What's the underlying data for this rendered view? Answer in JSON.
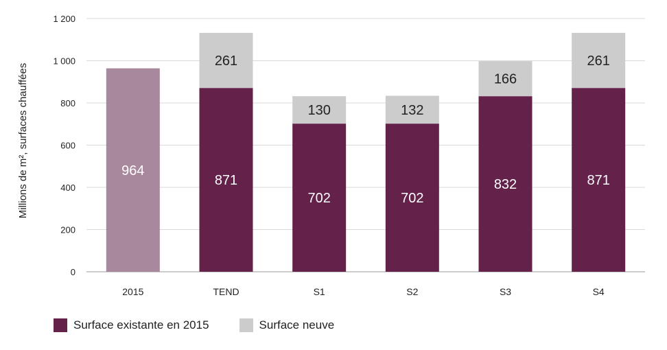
{
  "chart_data": {
    "type": "bar",
    "stacked": true,
    "categories": [
      "2015",
      "TEND",
      "S1",
      "S2",
      "S3",
      "S4"
    ],
    "series": [
      {
        "name": "Surface existante en 2015",
        "values": [
          964,
          871,
          702,
          702,
          832,
          871
        ],
        "color": "#64214a"
      },
      {
        "name": "Surface neuve",
        "values": [
          0,
          261,
          130,
          132,
          166,
          261
        ],
        "color": "#cccccc"
      }
    ],
    "first_bar_color": "#a8889c",
    "ylabel": "Millions de m², surfaces chauffées",
    "ylim": [
      0,
      1200
    ],
    "yticks": [
      0,
      200,
      400,
      600,
      800,
      1000,
      1200
    ],
    "ytick_labels": [
      "0",
      "200",
      "400",
      "600",
      "800",
      "1 000",
      "1 200"
    ],
    "grid": true,
    "legend_position": "bottom-left"
  }
}
